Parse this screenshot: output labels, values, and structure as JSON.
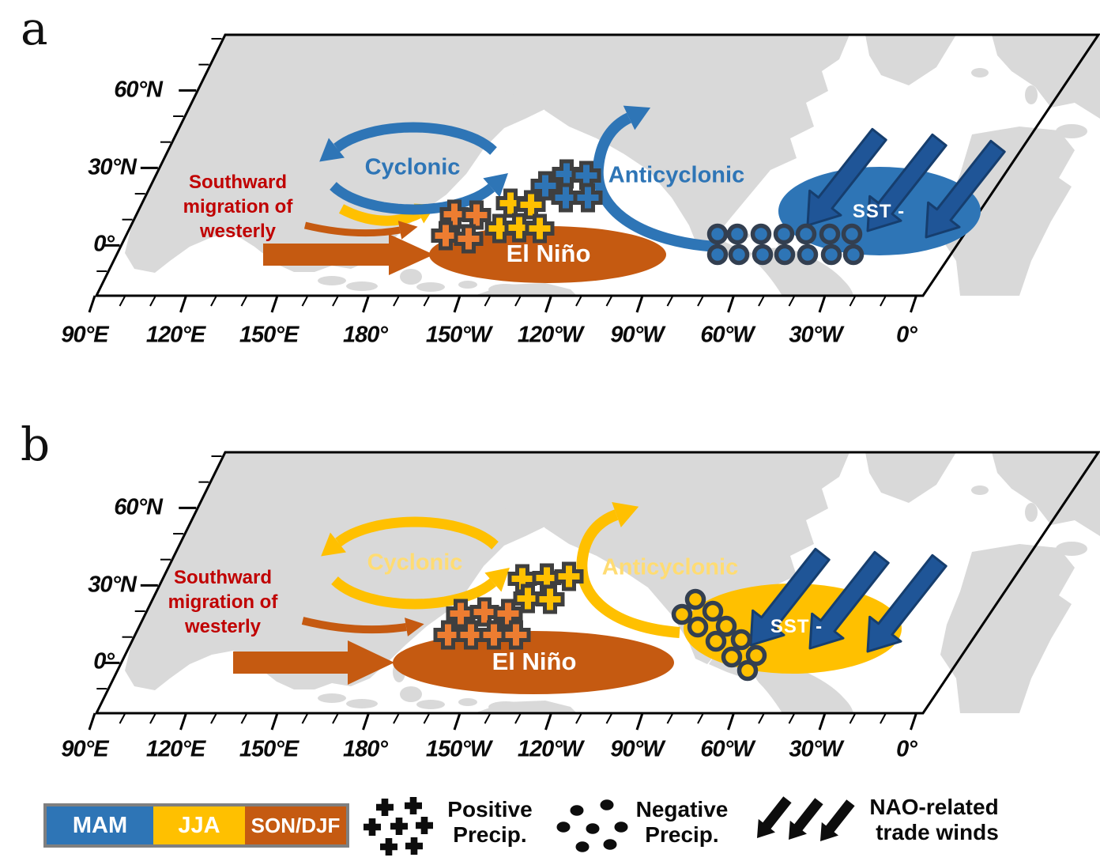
{
  "panels": [
    {
      "letter": "a",
      "lat_labels": [
        "60°N",
        "30°N",
        "0°"
      ],
      "lon_labels": [
        "90°E",
        "120°E",
        "150°E",
        "180°",
        "150°W",
        "120°W",
        "90°W",
        "60°W",
        "30°W",
        "0°"
      ],
      "red_note_lines": [
        "Southward",
        "migration of",
        "westerly"
      ],
      "cyclonic_label": "Cyclonic",
      "anticyclonic_label": "Anticyclonic",
      "sst_label": "SST -",
      "el_nino_label": "El Niño",
      "theme": {
        "circulation": "#2E75B6",
        "circulation_text": "#2E75B6",
        "sst_ellipse": "#2E75B6",
        "precip_dot_fill": "#2E75B6"
      }
    },
    {
      "letter": "b",
      "lat_labels": [
        "60°N",
        "30°N",
        "0°"
      ],
      "lon_labels": [
        "90°E",
        "120°E",
        "150°E",
        "180°",
        "150°W",
        "120°W",
        "90°W",
        "60°W",
        "30°W",
        "0°"
      ],
      "red_note_lines": [
        "Southward",
        "migration of",
        "westerly"
      ],
      "cyclonic_label": "Cyclonic",
      "anticyclonic_label": "Anticyclonic",
      "sst_label": "SST -",
      "el_nino_label": "El Niño",
      "theme": {
        "circulation": "#FFC000",
        "circulation_text": "#FFDC73",
        "sst_ellipse": "#FFC000",
        "precip_dot_fill": "#FFC000"
      }
    }
  ],
  "legend": {
    "seasons": [
      {
        "label": "MAM",
        "color": "#2E75B6"
      },
      {
        "label": "JJA",
        "color": "#FFC000"
      },
      {
        "label": "SON/DJF",
        "color": "#C55A11"
      }
    ],
    "positive": {
      "line1": "Positive",
      "line2": "Precip."
    },
    "negative": {
      "line1": "Negative",
      "line2": "Precip."
    },
    "trade": {
      "line1": "NAO-related",
      "line2": "trade winds"
    }
  },
  "colors": {
    "spring_blue": "#2E75B6",
    "summer_yellow": "#FFC000",
    "autumn_winter_brown": "#C55A11",
    "orange_plus": "#ED7D31",
    "trade_wind_navy": "#1F5597",
    "trade_wind_outline": "#163E6E",
    "red_annotation": "#C00000",
    "faded_yellow_text": "#FFDC73",
    "land_gray": "#D9D9D9",
    "marker_outline": "#3F3F3F",
    "circle_outline": "#333F50",
    "legend_black": "#0D0D0D",
    "legend_border_gray": "#7F7F7F"
  }
}
